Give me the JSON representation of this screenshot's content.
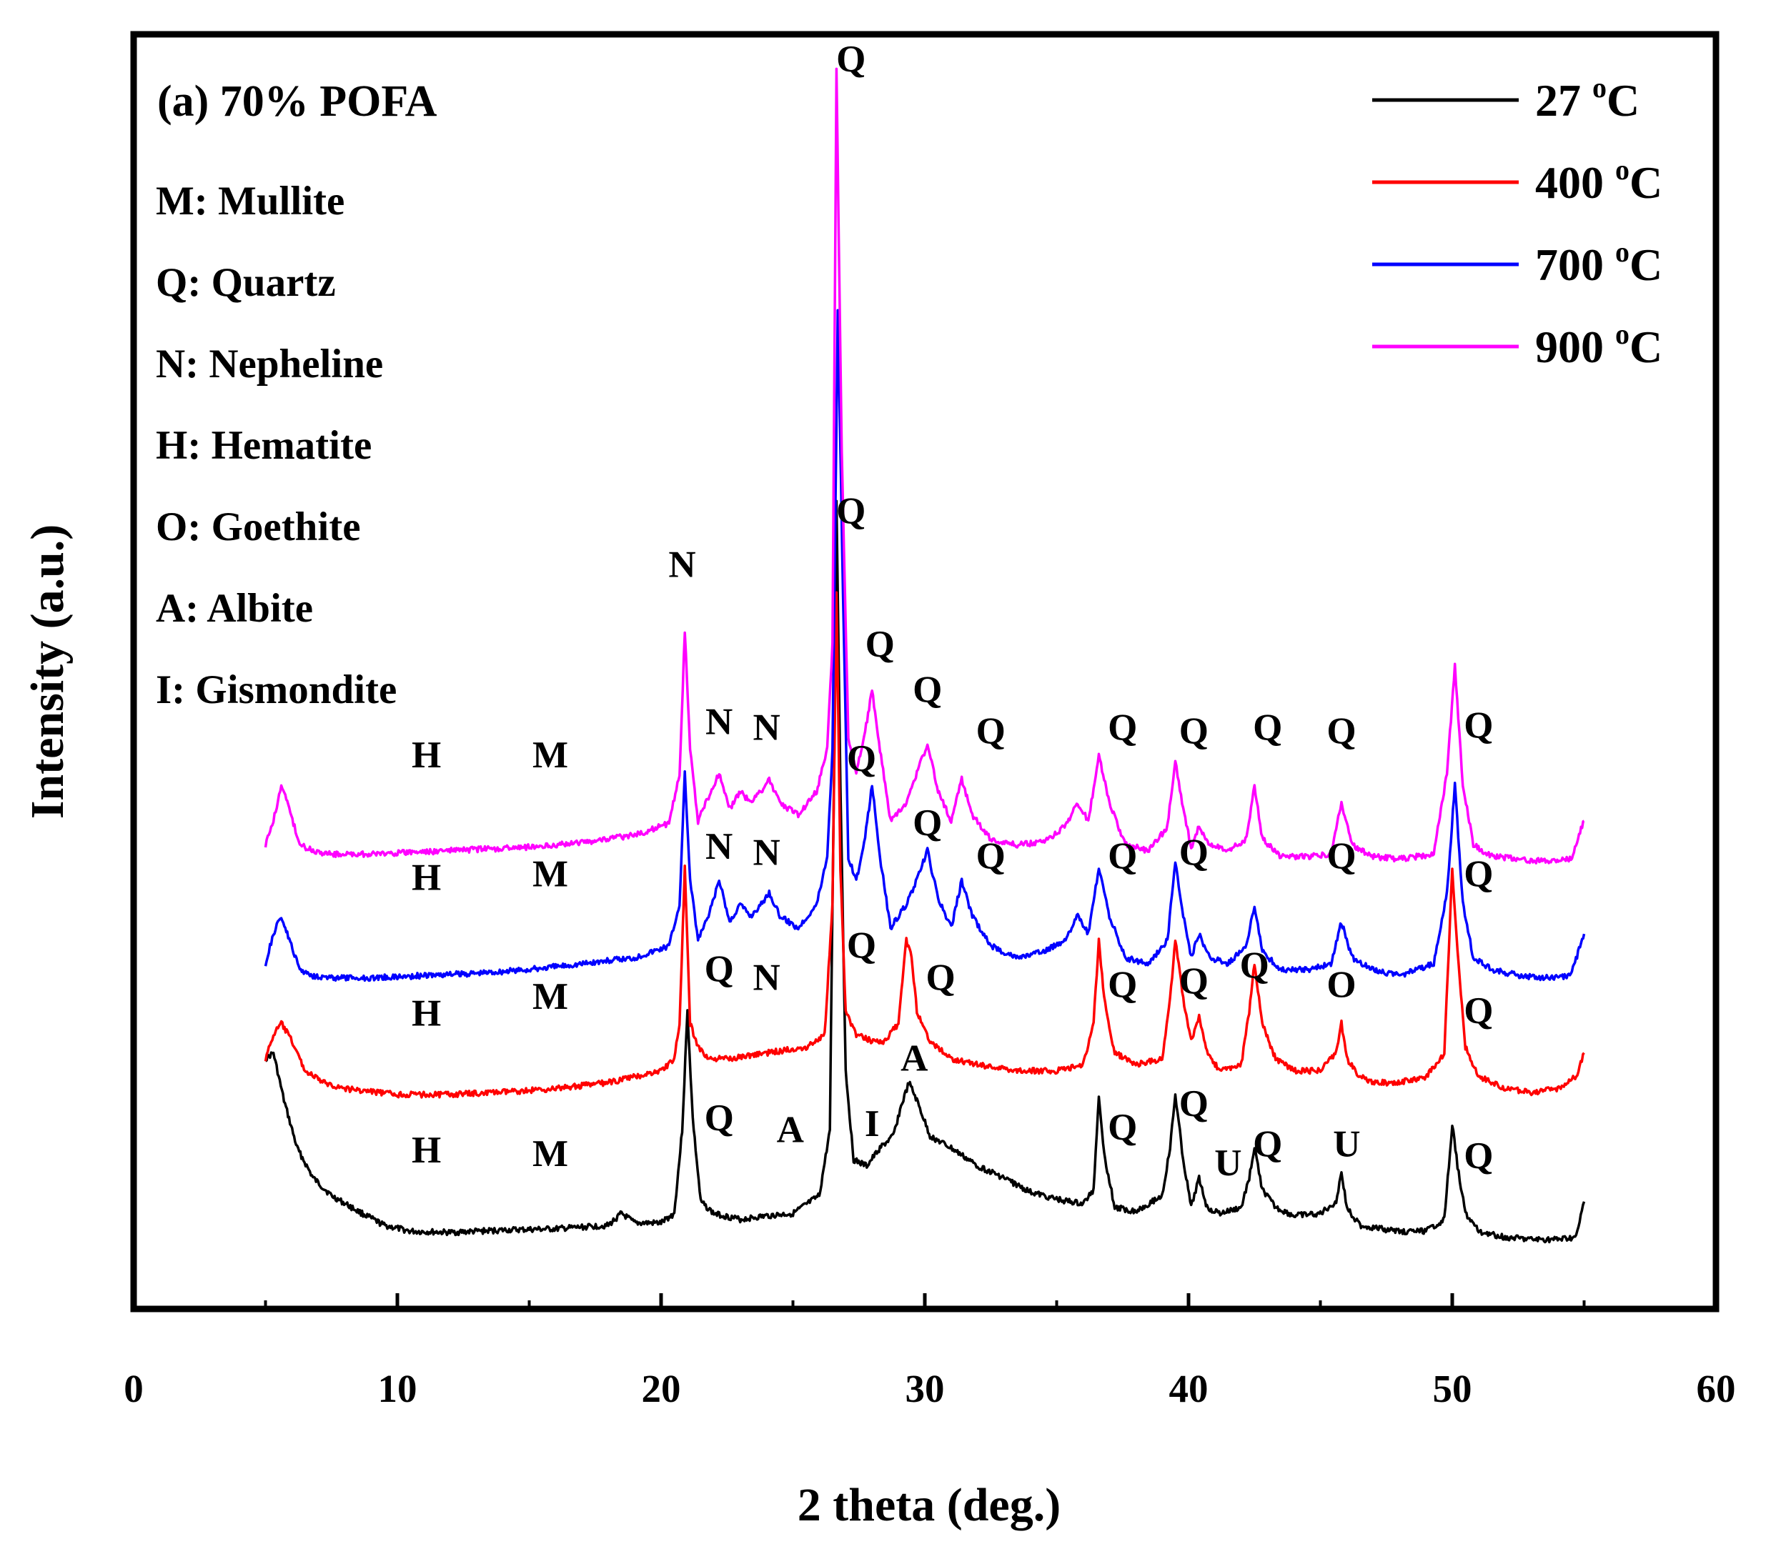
{
  "chart_data": {
    "type": "line",
    "title": "(a) 70% POFA",
    "xlabel": "2 theta (deg.)",
    "ylabel": "Intensity (a.u.)",
    "xlim": [
      0,
      60
    ],
    "ylim": [
      0,
      1000
    ],
    "xticks": [
      0,
      10,
      20,
      30,
      40,
      50,
      60
    ],
    "y_tick_labels": false,
    "legend_position": "top-right",
    "phase_key": [
      "M: Mullite",
      "Q: Quartz",
      "N: Nepheline",
      "H: Hematite",
      "O: Goethite",
      "A: Albite",
      "I: Gismondite"
    ],
    "series": [
      {
        "name": "27 °C",
        "temp": "27",
        "unit": "C",
        "color": "#000000",
        "x": [
          5,
          5.3,
          5.7,
          6.2,
          6.8,
          7.5,
          8.5,
          9.5,
          10.5,
          12,
          14,
          16,
          18,
          18.5,
          19,
          20,
          20.5,
          20.8,
          21.0,
          21.2,
          21.5,
          22,
          23,
          24,
          25,
          26,
          26.4,
          26.6,
          26.65,
          26.8,
          27.0,
          27.3,
          27.8,
          28.3,
          28.8,
          29.1,
          29.4,
          29.7,
          30.2,
          31,
          32,
          33,
          34,
          35,
          36,
          36.4,
          36.6,
          36.8,
          37.2,
          38,
          39,
          39.3,
          39.5,
          39.8,
          40.1,
          40.4,
          40.7,
          41.2,
          42,
          42.3,
          42.5,
          42.8,
          43.3,
          44,
          45,
          45.6,
          45.8,
          46.0,
          46.5,
          47,
          48,
          49,
          49.7,
          50.0,
          50.2,
          50.5,
          51,
          52,
          53,
          54,
          54.7,
          55
        ],
        "y": [
          170,
          175,
          135,
          95,
          70,
          55,
          42,
          30,
          25,
          24,
          26,
          27,
          30,
          40,
          32,
          32,
          40,
          110,
          210,
          120,
          50,
          40,
          35,
          38,
          40,
          55,
          110,
          490,
          640,
          400,
          160,
          85,
          80,
          95,
          105,
          130,
          150,
          135,
          105,
          95,
          80,
          70,
          58,
          52,
          48,
          60,
          140,
          90,
          45,
          42,
          55,
          95,
          140,
          85,
          45,
          70,
          45,
          40,
          45,
          70,
          95,
          60,
          45,
          38,
          40,
          50,
          75,
          45,
          30,
          28,
          25,
          25,
          35,
          115,
          80,
          40,
          25,
          20,
          18,
          18,
          20,
          50
        ]
      },
      {
        "name": "400 °C",
        "temp": "400",
        "unit": "C",
        "color": "#ff0000",
        "x": [
          5,
          5.3,
          5.6,
          6.0,
          6.5,
          7.2,
          8,
          10,
          12,
          14,
          16,
          18,
          20,
          20.5,
          20.7,
          20.9,
          21.1,
          21.4,
          21.8,
          22.5,
          24,
          25.5,
          26.2,
          26.5,
          26.65,
          26.8,
          27.0,
          27.4,
          28,
          28.5,
          29.0,
          29.3,
          29.5,
          29.7,
          30.2,
          31,
          32,
          33.5,
          35,
          36,
          36.4,
          36.6,
          36.8,
          37.2,
          38,
          39,
          39.3,
          39.5,
          39.8,
          40.1,
          40.4,
          40.7,
          41.2,
          42,
          42.3,
          42.5,
          42.8,
          43.3,
          44,
          45,
          45.6,
          45.8,
          46.0,
          46.5,
          47,
          48,
          49,
          49.7,
          50.0,
          50.2,
          50.5,
          51,
          52,
          53,
          54,
          54.7,
          55
        ],
        "y": [
          170,
          190,
          200,
          185,
          160,
          150,
          145,
          140,
          140,
          142,
          145,
          150,
          160,
          170,
          200,
          330,
          200,
          180,
          170,
          170,
          175,
          180,
          190,
          300,
          560,
          330,
          210,
          190,
          185,
          185,
          200,
          270,
          255,
          210,
          185,
          170,
          165,
          160,
          160,
          165,
          200,
          270,
          220,
          175,
          165,
          170,
          220,
          270,
          220,
          185,
          205,
          175,
          160,
          165,
          210,
          250,
          200,
          170,
          160,
          160,
          175,
          200,
          170,
          155,
          150,
          150,
          155,
          175,
          330,
          260,
          180,
          155,
          145,
          142,
          145,
          155,
          175
        ]
      },
      {
        "name": "700 °C",
        "temp": "700",
        "unit": "C",
        "color": "#0000ff",
        "x": [
          5,
          5.3,
          5.6,
          5.9,
          6.3,
          6.8,
          7.5,
          9,
          11,
          13,
          15,
          17,
          19,
          20.3,
          20.7,
          20.9,
          21.1,
          21.4,
          21.8,
          22.2,
          22.6,
          23.0,
          23.4,
          23.8,
          24.1,
          24.5,
          25.2,
          25.9,
          26.3,
          26.5,
          26.7,
          26.9,
          27.1,
          27.4,
          27.7,
          28.0,
          28.3,
          28.7,
          29.3,
          29.7,
          30.1,
          30.5,
          31.0,
          31.4,
          31.8,
          32.5,
          33.5,
          34.5,
          35.3,
          35.8,
          36.2,
          36.6,
          37.0,
          37.6,
          38.5,
          39.2,
          39.5,
          39.8,
          40.1,
          40.4,
          40.8,
          41.5,
          42.2,
          42.5,
          42.8,
          43.5,
          44.5,
          45.4,
          45.8,
          46.2,
          47,
          48,
          49.3,
          49.8,
          50.1,
          50.4,
          50.8,
          51.5,
          52.5,
          53.5,
          54.5,
          55
        ],
        "y": [
          250,
          275,
          290,
          270,
          245,
          240,
          238,
          238,
          240,
          242,
          245,
          250,
          255,
          265,
          300,
          410,
          320,
          270,
          290,
          320,
          285,
          300,
          290,
          300,
          310,
          290,
          280,
          300,
          340,
          430,
          800,
          560,
          340,
          320,
          350,
          400,
          340,
          280,
          300,
          320,
          345,
          305,
          280,
          320,
          290,
          265,
          255,
          260,
          270,
          290,
          275,
          330,
          290,
          255,
          250,
          270,
          335,
          290,
          255,
          275,
          255,
          250,
          265,
          300,
          260,
          245,
          245,
          250,
          285,
          255,
          245,
          240,
          250,
          310,
          400,
          300,
          255,
          245,
          240,
          238,
          240,
          275
        ]
      },
      {
        "name": "900 °C",
        "temp": "900",
        "unit": "C",
        "color": "#ff00ff",
        "x": [
          5,
          5.3,
          5.6,
          5.9,
          6.3,
          6.8,
          7.5,
          9,
          11,
          13,
          15,
          17,
          19,
          20.3,
          20.7,
          20.9,
          21.1,
          21.4,
          21.8,
          22.2,
          22.6,
          23.0,
          23.4,
          23.8,
          24.1,
          24.5,
          25.2,
          25.9,
          26.3,
          26.5,
          26.65,
          26.85,
          27.1,
          27.4,
          27.7,
          28.0,
          28.3,
          28.7,
          29.3,
          29.7,
          30.1,
          30.5,
          31.0,
          31.4,
          31.8,
          32.5,
          33.5,
          34.5,
          35.3,
          35.8,
          36.2,
          36.6,
          37.0,
          37.6,
          38.5,
          39.2,
          39.5,
          39.8,
          40.1,
          40.4,
          40.8,
          41.5,
          42.2,
          42.5,
          42.8,
          43.5,
          44.5,
          45.4,
          45.8,
          46.2,
          47,
          48,
          49.3,
          49.8,
          50.1,
          50.4,
          50.8,
          51.5,
          52.5,
          53.5,
          54.5,
          55
        ],
        "y": [
          350,
          370,
          400,
          380,
          350,
          345,
          342,
          342,
          344,
          346,
          348,
          352,
          358,
          368,
          410,
          530,
          430,
          370,
          390,
          410,
          380,
          395,
          385,
          395,
          405,
          385,
          375,
          395,
          430,
          520,
          1000,
          680,
          440,
          410,
          440,
          480,
          430,
          370,
          385,
          410,
          435,
          395,
          370,
          405,
          375,
          355,
          350,
          352,
          365,
          385,
          370,
          425,
          385,
          350,
          345,
          365,
          420,
          380,
          348,
          365,
          350,
          345,
          355,
          400,
          355,
          340,
          340,
          342,
          385,
          350,
          340,
          338,
          342,
          410,
          500,
          400,
          350,
          340,
          338,
          336,
          338,
          370
        ]
      }
    ],
    "peak_labels": [
      {
        "text": "Q",
        "x": 27.2,
        "y": 1000
      },
      {
        "text": "Q",
        "x": 27.2,
        "y": 620
      },
      {
        "text": "N",
        "x": 20.8,
        "y": 575
      },
      {
        "text": "H",
        "x": 11.1,
        "y": 415
      },
      {
        "text": "M",
        "x": 15.8,
        "y": 415
      },
      {
        "text": "N",
        "x": 22.2,
        "y": 443
      },
      {
        "text": "N",
        "x": 24.0,
        "y": 438
      },
      {
        "text": "Q",
        "x": 28.3,
        "y": 508
      },
      {
        "text": "Q",
        "x": 30.1,
        "y": 470
      },
      {
        "text": "Q",
        "x": 32.5,
        "y": 435
      },
      {
        "text": "Q",
        "x": 37.5,
        "y": 438
      },
      {
        "text": "Q",
        "x": 40.2,
        "y": 435
      },
      {
        "text": "Q",
        "x": 43.0,
        "y": 438
      },
      {
        "text": "Q",
        "x": 45.8,
        "y": 435
      },
      {
        "text": "Q",
        "x": 51.0,
        "y": 440
      },
      {
        "text": "H",
        "x": 11.1,
        "y": 312
      },
      {
        "text": "M",
        "x": 15.8,
        "y": 315
      },
      {
        "text": "N",
        "x": 22.2,
        "y": 338
      },
      {
        "text": "N",
        "x": 24.0,
        "y": 333
      },
      {
        "text": "Q",
        "x": 27.6,
        "y": 412
      },
      {
        "text": "Q",
        "x": 30.1,
        "y": 358
      },
      {
        "text": "Q",
        "x": 32.5,
        "y": 330
      },
      {
        "text": "Q",
        "x": 37.5,
        "y": 330
      },
      {
        "text": "Q",
        "x": 40.2,
        "y": 333
      },
      {
        "text": "Q",
        "x": 45.8,
        "y": 330
      },
      {
        "text": "Q",
        "x": 51.0,
        "y": 315
      },
      {
        "text": "H",
        "x": 11.1,
        "y": 198
      },
      {
        "text": "M",
        "x": 15.8,
        "y": 212
      },
      {
        "text": "Q",
        "x": 22.2,
        "y": 235
      },
      {
        "text": "N",
        "x": 24.0,
        "y": 228
      },
      {
        "text": "Q",
        "x": 27.6,
        "y": 255
      },
      {
        "text": "Q",
        "x": 30.6,
        "y": 228
      },
      {
        "text": "Q",
        "x": 37.5,
        "y": 222
      },
      {
        "text": "Q",
        "x": 40.2,
        "y": 225
      },
      {
        "text": "Q",
        "x": 42.5,
        "y": 238
      },
      {
        "text": "O",
        "x": 45.8,
        "y": 222
      },
      {
        "text": "Q",
        "x": 51.0,
        "y": 200
      },
      {
        "text": "H",
        "x": 11.1,
        "y": 83
      },
      {
        "text": "M",
        "x": 15.8,
        "y": 80
      },
      {
        "text": "Q",
        "x": 22.2,
        "y": 110
      },
      {
        "text": "A",
        "x": 24.9,
        "y": 100
      },
      {
        "text": "I",
        "x": 28.0,
        "y": 105
      },
      {
        "text": "A",
        "x": 29.6,
        "y": 160
      },
      {
        "text": "Q",
        "x": 37.5,
        "y": 102
      },
      {
        "text": "Q",
        "x": 40.2,
        "y": 122
      },
      {
        "text": "U",
        "x": 41.5,
        "y": 72
      },
      {
        "text": "Q",
        "x": 43.0,
        "y": 88
      },
      {
        "text": "U",
        "x": 46.0,
        "y": 88
      },
      {
        "text": "Q",
        "x": 51.0,
        "y": 78
      }
    ]
  }
}
